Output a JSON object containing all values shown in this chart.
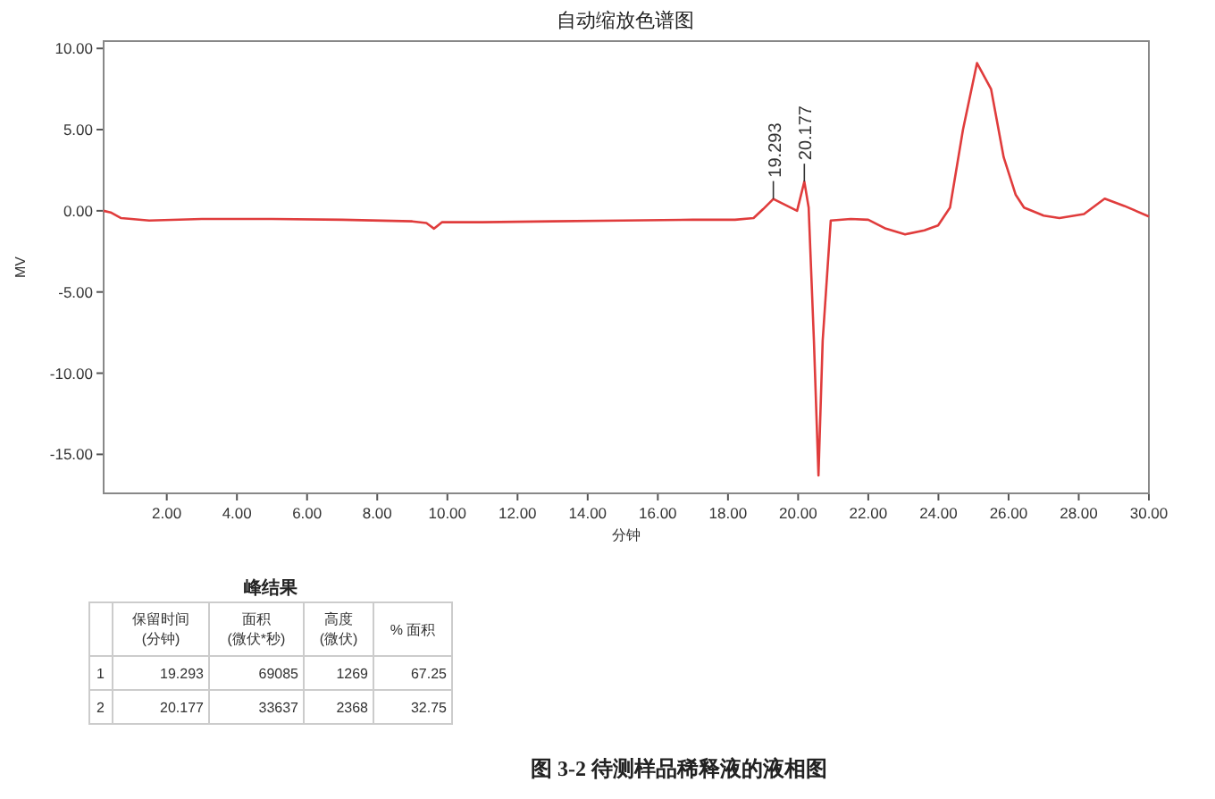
{
  "chart_data": {
    "type": "line",
    "title": "自动缩放色谱图",
    "xlabel": "分钟",
    "ylabel": "MV",
    "xlim": [
      0.2,
      30
    ],
    "ylim": [
      -17.4,
      10.45
    ],
    "xticks": [
      {
        "value": 2,
        "label": "2.00"
      },
      {
        "value": 4,
        "label": "4.00"
      },
      {
        "value": 6,
        "label": "6.00"
      },
      {
        "value": 8,
        "label": "8.00"
      },
      {
        "value": 10,
        "label": "10.00"
      },
      {
        "value": 12,
        "label": "12.00"
      },
      {
        "value": 14,
        "label": "14.00"
      },
      {
        "value": 16,
        "label": "16.00"
      },
      {
        "value": 18,
        "label": "18.00"
      },
      {
        "value": 20,
        "label": "20.00"
      },
      {
        "value": 22,
        "label": "22.00"
      },
      {
        "value": 24,
        "label": "24.00"
      },
      {
        "value": 26,
        "label": "26.00"
      },
      {
        "value": 28,
        "label": "28.00"
      },
      {
        "value": 30,
        "label": "30.00"
      }
    ],
    "yticks": [
      {
        "value": 10,
        "label": "10.00"
      },
      {
        "value": 5,
        "label": "5.00"
      },
      {
        "value": 0,
        "label": "0.00"
      },
      {
        "value": -5,
        "label": "-5.00"
      },
      {
        "value": -10,
        "label": "-10.00"
      },
      {
        "value": -15,
        "label": "-15.00"
      }
    ],
    "series": [
      {
        "color": "#e03c3c",
        "x": [
          0.2,
          0.4,
          0.7,
          1.5,
          3,
          5,
          7,
          9,
          9.4,
          9.62,
          9.85,
          11,
          13,
          15,
          17,
          18.2,
          18.73,
          19.0,
          19.293,
          19.6,
          19.97,
          20.177,
          20.3,
          20.45,
          20.58,
          20.7,
          20.93,
          21.5,
          22.0,
          22.5,
          23.05,
          23.6,
          23.99,
          24.33,
          24.7,
          25.1,
          25.5,
          25.86,
          26.2,
          26.44,
          27.0,
          27.45,
          28.15,
          28.74,
          29.3,
          30.0
        ],
        "values": [
          0,
          -0.1,
          -0.45,
          -0.6,
          -0.5,
          -0.5,
          -0.55,
          -0.65,
          -0.75,
          -1.1,
          -0.7,
          -0.7,
          -0.65,
          -0.6,
          -0.55,
          -0.55,
          -0.45,
          0.1,
          0.73,
          0.4,
          0,
          1.8,
          0.2,
          -8,
          -16.3,
          -8,
          -0.6,
          -0.5,
          -0.55,
          -1.1,
          -1.45,
          -1.2,
          -0.9,
          0.2,
          5,
          9.1,
          7.5,
          3.3,
          1.0,
          0.2,
          -0.3,
          -0.45,
          -0.2,
          0.75,
          0.3,
          -0.35
        ]
      }
    ],
    "annotations": [
      "峰结果",
      "保留时间 (分钟)",
      "面积 (微伏*秒)",
      "高度 (微伏)",
      "% 面积",
      "1",
      "19.293",
      "69085",
      "1269",
      "67.25",
      "2",
      "20.177",
      "33637",
      "2368",
      "32.75",
      "图 3-2  待测样品稀释液的液相图",
      {
        "text": "19.293",
        "x": 19.293,
        "y": 0.73
      },
      {
        "text": "20.177",
        "x": 20.177,
        "y": 1.8
      }
    ]
  }
}
